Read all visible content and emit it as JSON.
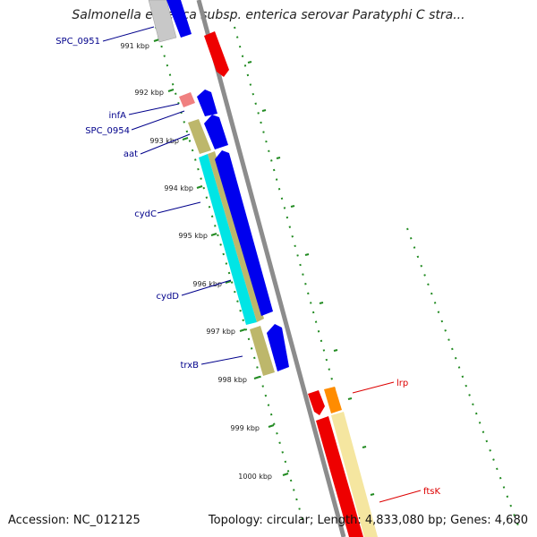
{
  "title": "Salmonella enterica subsp. enterica serovar Paratyphi C stra...",
  "footer": {
    "accession": "Accession: NC_012125",
    "summary": "Topology: circular; Length: 4,833,080 bp; Genes: 4,680"
  },
  "ruler_ticks": [
    {
      "label": "991 kbp"
    },
    {
      "label": "992 kbp"
    },
    {
      "label": "993 kbp"
    },
    {
      "label": "994 kbp"
    },
    {
      "label": "995 kbp"
    },
    {
      "label": "996 kbp"
    },
    {
      "label": "997 kbp"
    },
    {
      "label": "998 kbp"
    },
    {
      "label": "999 kbp"
    },
    {
      "label": "1000 kbp"
    }
  ],
  "gene_labels": [
    {
      "name": "SPC_0951",
      "strand": "reverse",
      "color": "#00008b"
    },
    {
      "name": "infA",
      "strand": "reverse",
      "color": "#00008b"
    },
    {
      "name": "SPC_0954",
      "strand": "reverse",
      "color": "#00008b"
    },
    {
      "name": "aat",
      "strand": "reverse",
      "color": "#00008b"
    },
    {
      "name": "cydC",
      "strand": "reverse",
      "color": "#00008b"
    },
    {
      "name": "cydD",
      "strand": "reverse",
      "color": "#00008b"
    },
    {
      "name": "trxB",
      "strand": "reverse",
      "color": "#00008b"
    },
    {
      "name": "lrp",
      "strand": "forward",
      "color": "#dd0000"
    },
    {
      "name": "ftsK",
      "strand": "forward",
      "color": "#dd0000"
    }
  ],
  "colors": {
    "backbone": "#8c8c8c",
    "reverse_cds": "#0000ee",
    "forward_cds": "#ee0000",
    "gene_khaki": "#bdb76b",
    "gene_cyan": "#00e5e5",
    "gene_yellow": "#f5e6a0",
    "gene_orange": "#ff8c00",
    "gene_pink": "#f08080",
    "gene_grey": "#c8c8c8",
    "ruler_dots": "#228b22",
    "label_line_reverse": "#00008b",
    "label_line_forward": "#dd0000"
  }
}
